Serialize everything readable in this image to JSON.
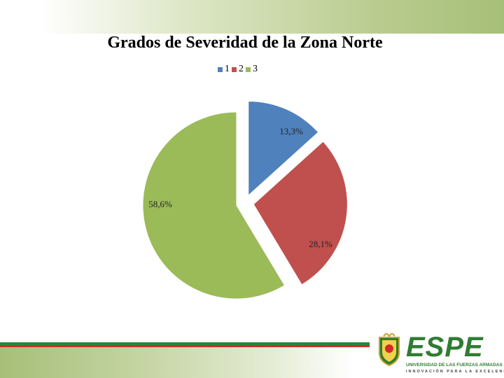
{
  "chart_data": {
    "type": "pie",
    "title": "Grados de Severidad de la Zona Norte",
    "categories": [
      "1",
      "2",
      "3"
    ],
    "values": [
      13.3,
      28.1,
      58.6
    ],
    "data_labels": [
      "13,3%",
      "28,1%",
      "58,6%"
    ],
    "colors": [
      "#4f81bd",
      "#c0504d",
      "#9bbb59"
    ],
    "exploded": true,
    "legend_position": "top"
  },
  "branding": {
    "logo_text": "ESPE",
    "university": "UNIVERSIDAD DE LAS FUERZAS ARMADAS",
    "motto": "INNOVACIÓN PARA LA EXCELENCIA"
  }
}
